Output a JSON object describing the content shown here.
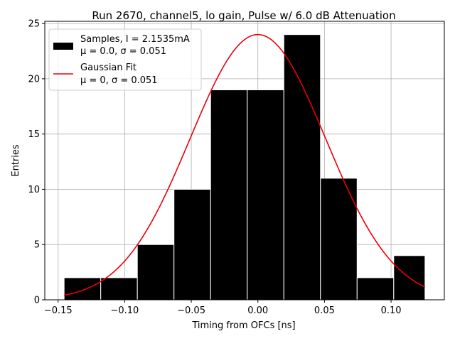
{
  "chart_data": {
    "type": "histogram",
    "title": "Run 2670, channel5, lo gain, Pulse w/ 6.0 dB Attenuation",
    "xlabel": "Timing from OFCs [ns]",
    "ylabel": "Entries",
    "xlim": [
      -0.16,
      0.14
    ],
    "ylim": [
      0,
      25.2
    ],
    "grid": true,
    "xticks": [
      -0.15,
      -0.1,
      -0.05,
      0.0,
      0.05,
      0.1
    ],
    "xtick_labels": [
      "−0.15",
      "−0.10",
      "−0.05",
      "0.00",
      "0.05",
      "0.10"
    ],
    "yticks": [
      0,
      5,
      10,
      15,
      20,
      25
    ],
    "ytick_labels": [
      "0",
      "5",
      "10",
      "15",
      "20",
      "25"
    ],
    "bin_edges": [
      -0.1455,
      -0.118,
      -0.0905,
      -0.063,
      -0.0355,
      -0.008,
      0.0195,
      0.047,
      0.0745,
      0.102,
      0.1255
    ],
    "counts": [
      2,
      2,
      5,
      10,
      19,
      19,
      24,
      11,
      2,
      4
    ],
    "bar_color": "#000000",
    "bar_edge_color": "#ffffff",
    "fit": {
      "mu": 0.0,
      "sigma": 0.051,
      "amplitude": 24.0,
      "x_range": [
        -0.1455,
        0.1255
      ],
      "color": "#e8000b"
    },
    "legend": {
      "position": "upper-left",
      "entries": [
        {
          "kind": "bar",
          "line1": "Samples, I = 2.1535mA",
          "line2": "μ = 0.0, σ = 0.051"
        },
        {
          "kind": "line",
          "line1": "Gaussian Fit",
          "line2": "μ = 0, σ = 0.051"
        }
      ]
    }
  }
}
